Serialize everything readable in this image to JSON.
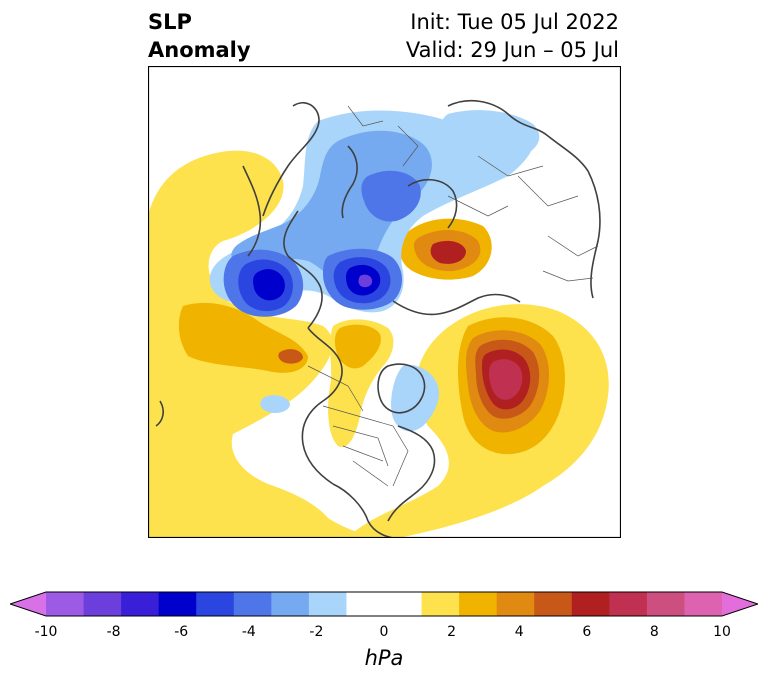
{
  "title": {
    "left_line1": "SLP",
    "left_line2": "Anomaly",
    "right_line1": "Init: Tue 05 Jul 2022",
    "right_line2": "Valid: 29 Jun – 05 Jul"
  },
  "colorbar": {
    "unit": "hPa",
    "ticks": [
      "-10",
      "-8",
      "-6",
      "-4",
      "-2",
      "0",
      "2",
      "4",
      "6",
      "8",
      "10"
    ],
    "bins": [
      "#9d5ae5",
      "#6c3fdc",
      "#3a1fd8",
      "#0000cd",
      "#2b45e0",
      "#4f76e8",
      "#76aaf0",
      "#aad5fa",
      "#ffffff",
      "#ffffff",
      "#fde24e",
      "#f0b400",
      "#e08a12",
      "#c85818",
      "#b02020",
      "#c03050",
      "#cc4f7f",
      "#dd62b0"
    ],
    "under_color": "#d870e6",
    "over_color": "#e26ddb"
  }
}
